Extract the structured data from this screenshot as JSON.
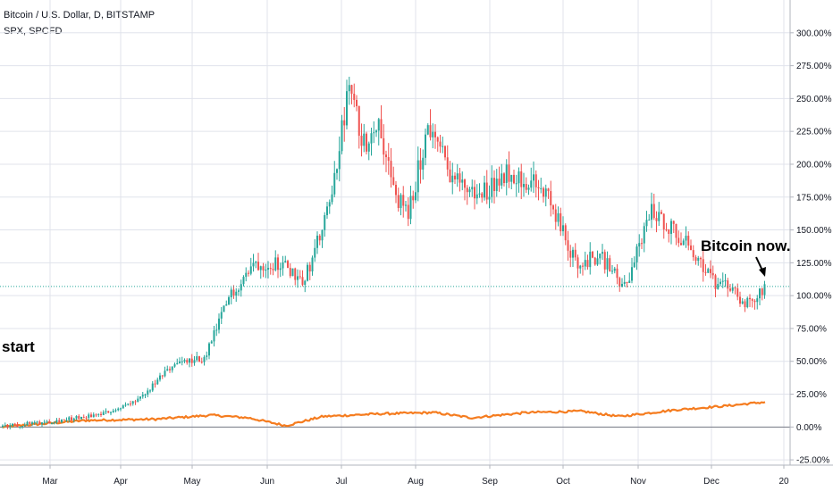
{
  "chart_data": {
    "type": "candlestick",
    "legend": {
      "main": "Bitcoin / U.S. Dollar, D, BITSTAMP",
      "overlay": "SPX, SPCFD"
    },
    "y_axis": {
      "ticks": [
        300,
        275,
        250,
        225,
        200,
        175,
        150,
        125,
        100,
        75,
        50,
        25,
        0,
        -25
      ],
      "tick_labels": [
        "300.00%",
        "275.00%",
        "250.00%",
        "225.00%",
        "200.00%",
        "175.00%",
        "150.00%",
        "125.00%",
        "100.00%",
        "75.00%",
        "50.00%",
        "25.00%",
        "0.00%",
        "-25.00%"
      ],
      "ylim": [
        -29,
        325
      ],
      "unit": "%",
      "grid": true
    },
    "x_axis": {
      "labels": [
        "Mar",
        "Apr",
        "May",
        "Jun",
        "Jul",
        "Aug",
        "Sep",
        "Oct",
        "Nov",
        "Dec",
        "20"
      ],
      "grid": true
    },
    "current_value_line": 107,
    "annotations": [
      "start",
      "Bitcoin now."
    ],
    "series": [
      {
        "name": "Bitcoin / U.S. Dollar",
        "kind": "candles",
        "color_up": "#26a69a",
        "color_down": "#ef5350",
        "waypoints": [
          [
            "Feb",
            0
          ],
          [
            "Mar",
            6
          ],
          [
            "Mar",
            10
          ],
          [
            "Apr",
            20
          ],
          [
            "Apr",
            48
          ],
          [
            "May",
            52
          ],
          [
            "May",
            100
          ],
          [
            "May",
            125
          ],
          [
            "Jun",
            125
          ],
          [
            "Jun",
            112
          ],
          [
            "Jun",
            165
          ],
          [
            "Jul",
            258
          ],
          [
            "Jul",
            215
          ],
          [
            "Jul",
            235
          ],
          [
            "Jul",
            180
          ],
          [
            "Jul",
            160
          ],
          [
            "Aug",
            230
          ],
          [
            "Aug",
            190
          ],
          [
            "Aug",
            175
          ],
          [
            "Sep",
            195
          ],
          [
            "Sep",
            180
          ],
          [
            "Oct",
            125
          ],
          [
            "Oct",
            130
          ],
          [
            "Oct",
            105
          ],
          [
            "Nov",
            165
          ],
          [
            "Nov",
            150
          ],
          [
            "Nov",
            128
          ],
          [
            "Dec",
            105
          ],
          [
            "Dec",
            108
          ],
          [
            "Dec",
            92
          ],
          [
            "Dec",
            107
          ]
        ]
      },
      {
        "name": "SPX",
        "kind": "line",
        "color": "#f57c1f",
        "waypoints": [
          [
            "Feb",
            0
          ],
          [
            "Mar",
            5
          ],
          [
            "Apr",
            6
          ],
          [
            "May",
            9
          ],
          [
            "May",
            7
          ],
          [
            "Jun",
            1
          ],
          [
            "Jun",
            8
          ],
          [
            "Jul",
            10
          ],
          [
            "Aug",
            11
          ],
          [
            "Aug",
            7
          ],
          [
            "Sep",
            11
          ],
          [
            "Oct",
            12
          ],
          [
            "Oct",
            8
          ],
          [
            "Nov",
            13
          ],
          [
            "Dec",
            16
          ],
          [
            "Dec",
            19
          ]
        ]
      }
    ]
  },
  "colors": {
    "grid": "#e0e3eb",
    "axis": "#b2b5be",
    "current_line": "#26a69a",
    "text": "#131722"
  }
}
